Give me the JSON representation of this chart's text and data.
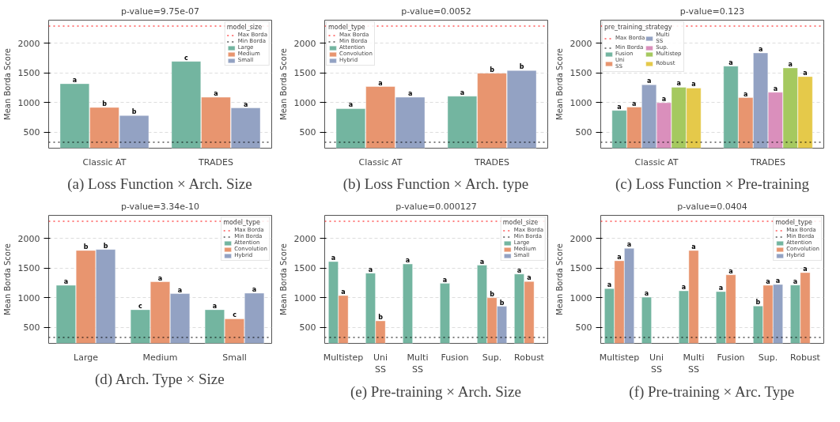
{
  "chart_data": [
    {
      "type": "bar",
      "title": "p-value=9.75e-07",
      "ylabel": "Mean Borda Score",
      "annotations": [
        "(a) Loss Function × Arch. Size"
      ],
      "legend_title": "model_size",
      "legend": "top right",
      "grid": "y",
      "ylim": [
        230,
        2390
      ],
      "yticks": [
        500,
        1000,
        1500,
        2000
      ],
      "categories": [
        "Classic AT",
        "TRADES"
      ],
      "series": [
        {
          "name": "Large",
          "color": "#73b5a0",
          "values": [
            1318,
            1695
          ],
          "value_labels": [
            "a",
            "c"
          ]
        },
        {
          "name": "Medium",
          "color": "#e8956f",
          "values": [
            918,
            1090
          ],
          "value_labels": [
            "b",
            "a"
          ]
        },
        {
          "name": "Small",
          "color": "#93a2c3",
          "values": [
            781,
            910
          ],
          "value_labels": [
            "b",
            "a"
          ]
        }
      ],
      "ref_lines": [
        {
          "axis": "y",
          "value": 2290,
          "label": "Max Borda",
          "color": "#ff0000",
          "line_style": "dotted"
        },
        {
          "axis": "y",
          "value": 330,
          "label": "Min Borda",
          "color": "#000000",
          "line_style": "dotted"
        }
      ]
    },
    {
      "type": "bar",
      "title": "p-value=0.0052",
      "ylabel": "Mean Borda Score",
      "annotations": [
        "(b) Loss Function × Arch. type"
      ],
      "legend_title": "model_type",
      "legend": "top left",
      "grid": "y",
      "ylim": [
        230,
        2390
      ],
      "yticks": [
        500,
        1000,
        1500,
        2000
      ],
      "categories": [
        "Classic AT",
        "TRADES"
      ],
      "series": [
        {
          "name": "Attention",
          "color": "#73b5a0",
          "values": [
            897,
            1107
          ],
          "value_labels": [
            "a",
            "a"
          ]
        },
        {
          "name": "Convolution",
          "color": "#e8956f",
          "values": [
            1270,
            1494
          ],
          "value_labels": [
            "a",
            "b"
          ]
        },
        {
          "name": "Hybrid",
          "color": "#93a2c3",
          "values": [
            1090,
            1540
          ],
          "value_labels": [
            "a",
            "b"
          ]
        }
      ],
      "ref_lines": [
        {
          "axis": "y",
          "value": 2290,
          "label": "Max Borda",
          "color": "#ff0000",
          "line_style": "dotted"
        },
        {
          "axis": "y",
          "value": 330,
          "label": "Min Borda",
          "color": "#000000",
          "line_style": "dotted"
        }
      ]
    },
    {
      "type": "bar",
      "title": "p-value=0.123",
      "ylabel": "Mean Borda Score",
      "annotations": [
        "(c) Loss Function × Pre-training"
      ],
      "legend_title": "pre_training_strategy",
      "legend": "top left",
      "grid": "y",
      "ylim": [
        230,
        2390
      ],
      "yticks": [
        500,
        1000,
        1500,
        2000
      ],
      "categories": [
        "Classic AT",
        "TRADES"
      ],
      "series": [
        {
          "name": "Fusion",
          "color": "#73b5a0",
          "values": [
            867,
            1614
          ],
          "value_labels": [
            "a",
            "a"
          ]
        },
        {
          "name": "Uni\nSS",
          "color": "#e8956f",
          "values": [
            923,
            1082
          ],
          "value_labels": [
            "a",
            "a"
          ]
        },
        {
          "name": "Multi\nSS",
          "color": "#93a2c3",
          "values": [
            1300,
            1837
          ],
          "value_labels": [
            "a",
            "a"
          ]
        },
        {
          "name": "Sup.",
          "color": "#da8fbc",
          "values": [
            996,
            1172
          ],
          "value_labels": [
            "a",
            "a"
          ]
        },
        {
          "name": "Multistep",
          "color": "#a5c95f",
          "values": [
            1258,
            1584
          ],
          "value_labels": [
            "a",
            "a"
          ]
        },
        {
          "name": "Robust",
          "color": "#e5c94a",
          "values": [
            1245,
            1438
          ],
          "value_labels": [
            "a",
            "a"
          ]
        }
      ],
      "ref_lines": [
        {
          "axis": "y",
          "value": 2290,
          "label": "Max Borda",
          "color": "#ff0000",
          "line_style": "dotted"
        },
        {
          "axis": "y",
          "value": 330,
          "label": "Min Borda",
          "color": "#000000",
          "line_style": "dotted"
        }
      ]
    },
    {
      "type": "bar",
      "title": "p-value=3.34e-10",
      "ylabel": "Mean Borda Score",
      "annotations": [
        "(d) Arch. Type × Size"
      ],
      "legend_title": "model_type",
      "legend": "top right",
      "grid": "y",
      "ylim": [
        230,
        2390
      ],
      "yticks": [
        500,
        1000,
        1500,
        2000
      ],
      "categories": [
        "Large",
        "Medium",
        "Small"
      ],
      "series": [
        {
          "name": "Attention",
          "color": "#73b5a0",
          "values": [
            1210,
            798,
            798
          ],
          "value_labels": [
            "a",
            "c",
            "a"
          ]
        },
        {
          "name": "Convolution",
          "color": "#e8956f",
          "values": [
            1798,
            1270,
            644
          ],
          "value_labels": [
            "b",
            "a",
            "c"
          ]
        },
        {
          "name": "Hybrid",
          "color": "#93a2c3",
          "values": [
            1815,
            1069,
            1077
          ],
          "value_labels": [
            "b",
            "a",
            "a"
          ]
        }
      ],
      "ref_lines": [
        {
          "axis": "y",
          "value": 2290,
          "label": "Max Borda",
          "color": "#ff0000",
          "line_style": "dotted"
        },
        {
          "axis": "y",
          "value": 330,
          "label": "Min Borda",
          "color": "#000000",
          "line_style": "dotted"
        }
      ]
    },
    {
      "type": "bar",
      "title": "p-value=0.000127",
      "ylabel": "Mean Borda Score",
      "annotations": [
        "(e) Pre-training × Arch. Size"
      ],
      "legend_title": "model_size",
      "legend": "top right",
      "grid": "y",
      "ylim": [
        230,
        2390
      ],
      "yticks": [
        500,
        1000,
        1500,
        2000
      ],
      "categories": [
        "Multistep",
        "Uni\nSS",
        "Multi\nSS",
        "Fusion",
        "Sup.",
        "Robust"
      ],
      "series": [
        {
          "name": "Large",
          "color": "#73b5a0",
          "values": [
            1610,
            1415,
            1569,
            1242,
            1550,
            1400
          ],
          "value_labels": [
            "a",
            "a",
            "a",
            "a",
            "a",
            "a"
          ]
        },
        {
          "name": "Medium",
          "color": "#e8956f",
          "values": [
            1037,
            609,
            null,
            null,
            1000,
            1275
          ],
          "value_labels": [
            "a",
            "b",
            null,
            null,
            "b",
            "a"
          ]
        },
        {
          "name": "Small",
          "color": "#93a2c3",
          "values": [
            null,
            null,
            null,
            null,
            856,
            null
          ],
          "value_labels": [
            null,
            null,
            null,
            null,
            "b",
            null
          ]
        }
      ],
      "ref_lines": [
        {
          "axis": "y",
          "value": 2290,
          "label": "Max Borda",
          "color": "#ff0000",
          "line_style": "dotted"
        },
        {
          "axis": "y",
          "value": 330,
          "label": "Min Borda",
          "color": "#000000",
          "line_style": "dotted"
        }
      ]
    },
    {
      "type": "bar",
      "title": "p-value=0.0404",
      "ylabel": "Mean Borda Score",
      "annotations": [
        "(f) Pre-training × Arc. Type"
      ],
      "legend_title": "model_type",
      "legend": "top right",
      "grid": "y",
      "ylim": [
        230,
        2390
      ],
      "yticks": [
        500,
        1000,
        1500,
        2000
      ],
      "categories": [
        "Multistep",
        "Uni\nSS",
        "Multi\nSS",
        "Fusion",
        "Sup.",
        "Robust"
      ],
      "series": [
        {
          "name": "Attention",
          "color": "#73b5a0",
          "values": [
            1154,
            1009,
            1116,
            1103,
            860,
            1214
          ],
          "value_labels": [
            "a",
            "a",
            "a",
            "a",
            "b",
            "a"
          ]
        },
        {
          "name": "Convolution",
          "color": "#e8956f",
          "values": [
            1624,
            null,
            1797,
            1387,
            1210,
            1424
          ],
          "value_labels": [
            "a",
            null,
            "a",
            "a",
            "a",
            "a"
          ]
        },
        {
          "name": "Hybrid",
          "color": "#93a2c3",
          "values": [
            1834,
            null,
            null,
            null,
            1224,
            null
          ],
          "value_labels": [
            "a",
            null,
            null,
            null,
            "a",
            null
          ]
        }
      ],
      "ref_lines": [
        {
          "axis": "y",
          "value": 2290,
          "label": "Max Borda",
          "color": "#ff0000",
          "line_style": "dotted"
        },
        {
          "axis": "y",
          "value": 330,
          "label": "Min Borda",
          "color": "#000000",
          "line_style": "dotted"
        }
      ]
    }
  ]
}
